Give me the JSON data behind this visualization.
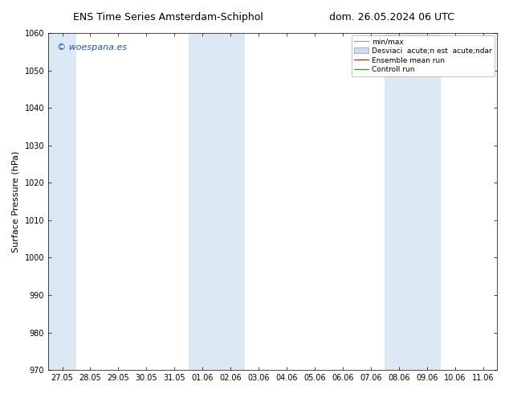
{
  "title_left": "ENS Time Series Amsterdam-Schiphol",
  "title_right": "dom. 26.05.2024 06 UTC",
  "ylabel": "Surface Pressure (hPa)",
  "ylim": [
    970,
    1060
  ],
  "yticks": [
    970,
    980,
    990,
    1000,
    1010,
    1020,
    1030,
    1040,
    1050,
    1060
  ],
  "xtick_labels": [
    "27.05",
    "28.05",
    "29.05",
    "30.05",
    "31.05",
    "01.06",
    "02.06",
    "03.06",
    "04.06",
    "05.06",
    "06.06",
    "07.06",
    "08.06",
    "09.06",
    "10.06",
    "11.06"
  ],
  "background_color": "#ffffff",
  "shaded_band_color": "#dce9f5",
  "watermark_text": "© woespana.es",
  "watermark_color": "#2255bb",
  "legend_label_minmax": "min/max",
  "legend_label_std": "Desviaci  acute;n est  acute;ndar",
  "legend_label_ensemble": "Ensemble mean run",
  "legend_label_control": "Controll run",
  "legend_color_minmax": "#999999",
  "legend_color_std": "#ccddf0",
  "legend_color_ensemble": "#ff0000",
  "legend_color_control": "#00aa00",
  "shaded_ranges": [
    [
      -0.5,
      0.5
    ],
    [
      4.5,
      6.5
    ],
    [
      11.5,
      13.5
    ]
  ],
  "fig_width": 6.34,
  "fig_height": 4.9,
  "dpi": 100,
  "title_fontsize": 9,
  "tick_fontsize": 7,
  "ylabel_fontsize": 8,
  "watermark_fontsize": 8,
  "legend_fontsize": 6.5
}
